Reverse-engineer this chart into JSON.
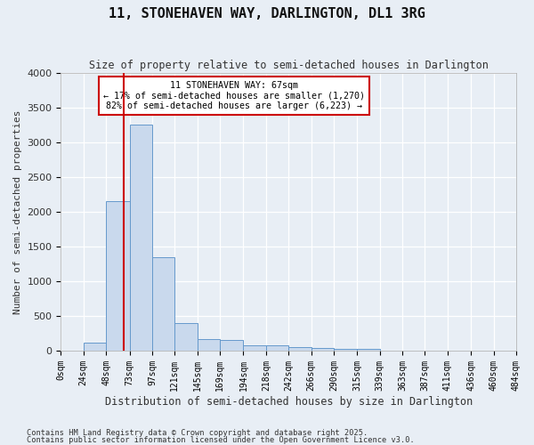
{
  "title": "11, STONEHAVEN WAY, DARLINGTON, DL1 3RG",
  "subtitle": "Size of property relative to semi-detached houses in Darlington",
  "xlabel": "Distribution of semi-detached houses by size in Darlington",
  "ylabel": "Number of semi-detached properties",
  "bin_edges": [
    0,
    24,
    48,
    73,
    97,
    121,
    145,
    169,
    194,
    218,
    242,
    266,
    290,
    315,
    339,
    363,
    387,
    411,
    436,
    460,
    484
  ],
  "bar_heights": [
    0,
    110,
    2150,
    3250,
    1350,
    400,
    160,
    155,
    80,
    80,
    45,
    40,
    30,
    30,
    0,
    0,
    0,
    0,
    0,
    0
  ],
  "bar_color": "#c9d9ed",
  "bar_edge_color": "#6699cc",
  "red_line_x": 67,
  "red_line_color": "#cc0000",
  "annotation_title": "11 STONEHAVEN WAY: 67sqm",
  "annotation_line1": "← 17% of semi-detached houses are smaller (1,270)",
  "annotation_line2": "82% of semi-detached houses are larger (6,223) →",
  "annotation_box_color": "#cc0000",
  "ylim": [
    0,
    4000
  ],
  "yticks": [
    0,
    500,
    1000,
    1500,
    2000,
    2500,
    3000,
    3500,
    4000
  ],
  "tick_labels": [
    "0sqm",
    "24sqm",
    "48sqm",
    "73sqm",
    "97sqm",
    "121sqm",
    "145sqm",
    "169sqm",
    "194sqm",
    "218sqm",
    "242sqm",
    "266sqm",
    "290sqm",
    "315sqm",
    "339sqm",
    "363sqm",
    "387sqm",
    "411sqm",
    "436sqm",
    "460sqm",
    "484sqm"
  ],
  "footnote1": "Contains HM Land Registry data © Crown copyright and database right 2025.",
  "footnote2": "Contains public sector information licensed under the Open Government Licence v3.0.",
  "bg_color": "#e8eef5",
  "plot_bg_color": "#e8eef5"
}
